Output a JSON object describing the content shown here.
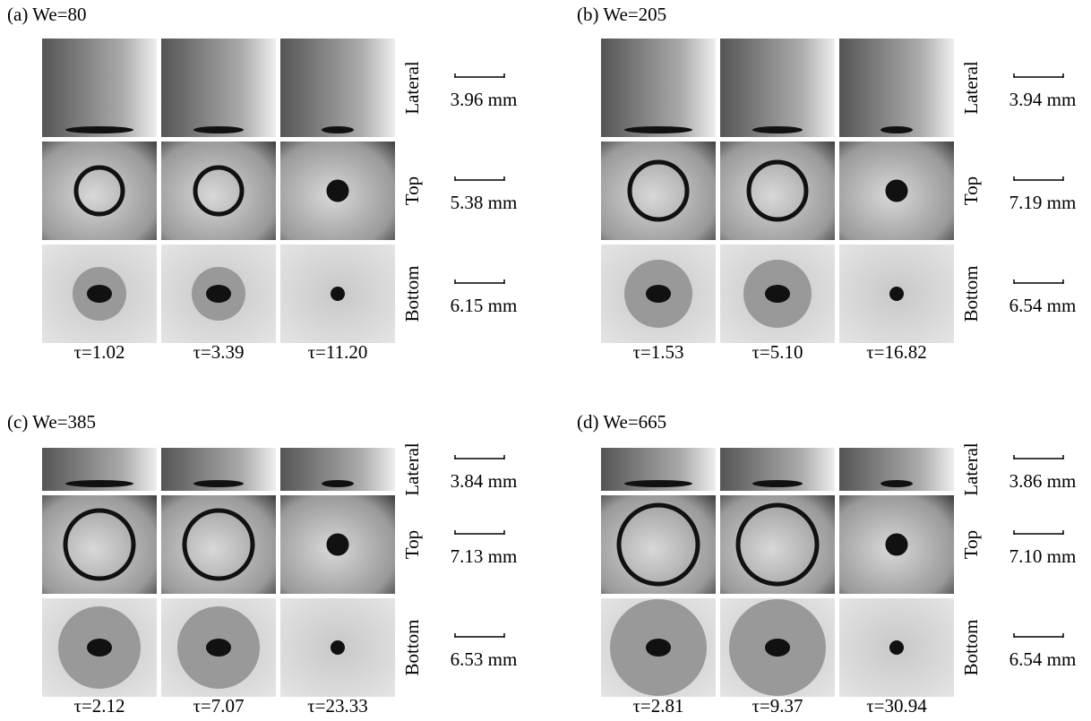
{
  "panels": [
    {
      "title": "(a) We=80",
      "rows": [
        {
          "label": "Lateral",
          "scale": "3.96 mm"
        },
        {
          "label": "Top",
          "scale": "5.38 mm"
        },
        {
          "label": "Bottom",
          "scale": "6.15 mm"
        }
      ],
      "times": [
        "τ=1.02",
        "τ=3.39",
        "τ=11.20"
      ]
    },
    {
      "title": "(b) We=205",
      "rows": [
        {
          "label": "Lateral",
          "scale": "3.94 mm"
        },
        {
          "label": "Top",
          "scale": "7.19 mm"
        },
        {
          "label": "Bottom",
          "scale": "6.54 mm"
        }
      ],
      "times": [
        "τ=1.53",
        "τ=5.10",
        "τ=16.82"
      ]
    },
    {
      "title": "(c) We=385",
      "rows": [
        {
          "label": "Lateral",
          "scale": "3.84 mm"
        },
        {
          "label": "Top",
          "scale": "7.13 mm"
        },
        {
          "label": "Bottom",
          "scale": "6.53 mm"
        }
      ],
      "times": [
        "τ=2.12",
        "τ=7.07",
        "τ=23.33"
      ]
    },
    {
      "title": "(d) We=665",
      "rows": [
        {
          "label": "Lateral",
          "scale": "3.86 mm"
        },
        {
          "label": "Top",
          "scale": "7.10 mm"
        },
        {
          "label": "Bottom",
          "scale": "6.54 mm"
        }
      ],
      "times": [
        "τ=2.81",
        "τ=9.37",
        "τ=30.94"
      ]
    }
  ]
}
